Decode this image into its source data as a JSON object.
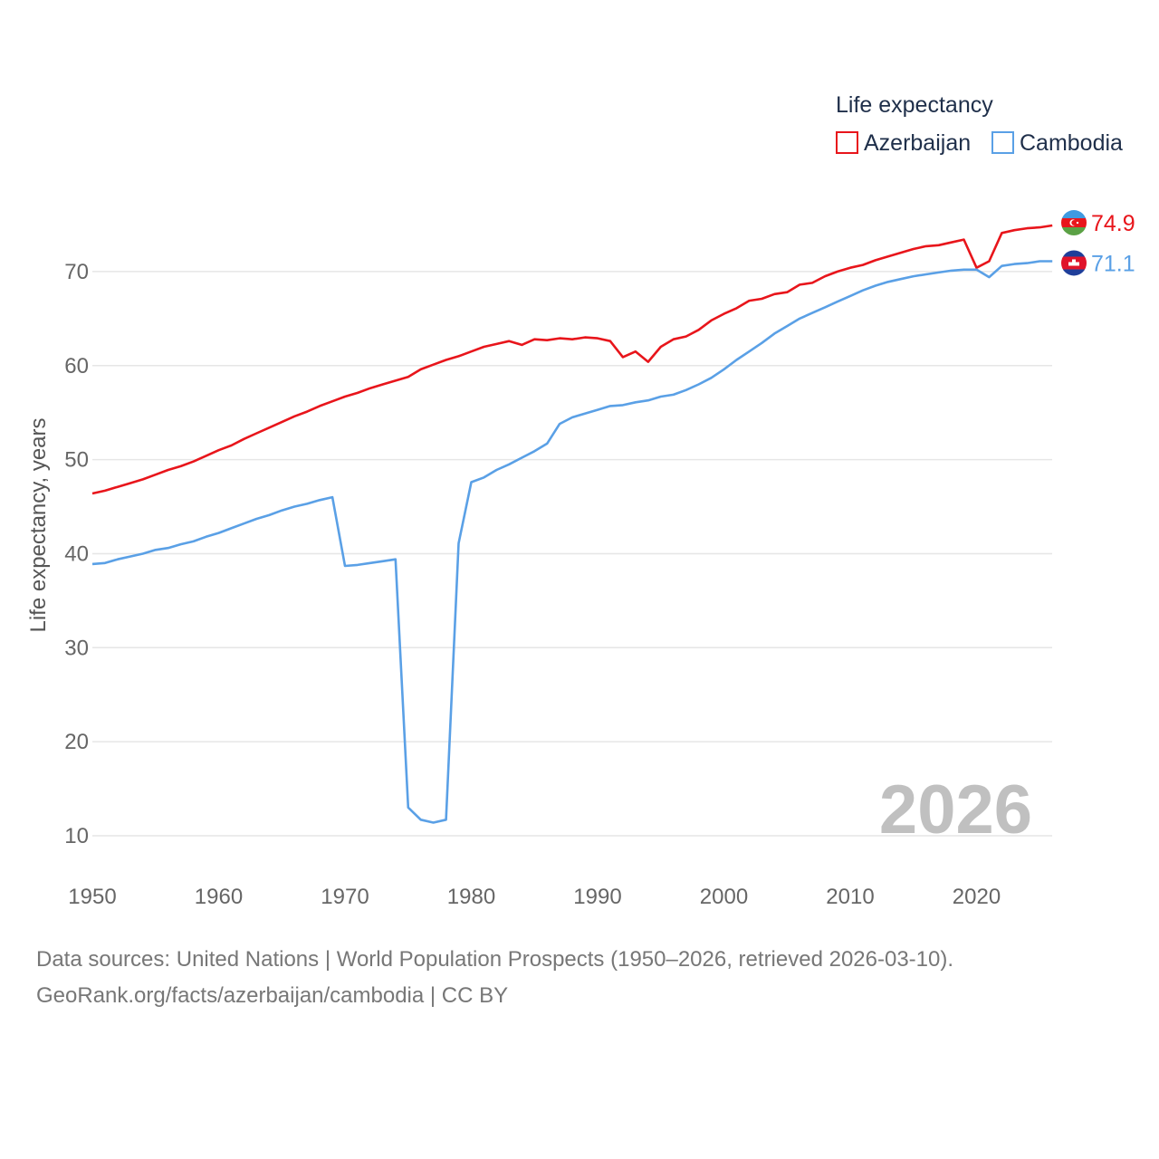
{
  "chart_data": {
    "type": "line",
    "title": "",
    "ylabel": "Life expectancy, years",
    "xlabel": "",
    "xlim": [
      1950,
      2026
    ],
    "ylim": [
      5,
      80
    ],
    "y_ticks": [
      10,
      20,
      30,
      40,
      50,
      60,
      70
    ],
    "x_ticks": [
      1950,
      1960,
      1970,
      1980,
      1990,
      2000,
      2010,
      2020
    ],
    "grid": "horizontal",
    "legend_title": "Life expectancy",
    "legend_position": "top-right",
    "current_year_label": "2026",
    "x": [
      1950,
      1951,
      1952,
      1953,
      1954,
      1955,
      1956,
      1957,
      1958,
      1959,
      1960,
      1961,
      1962,
      1963,
      1964,
      1965,
      1966,
      1967,
      1968,
      1969,
      1970,
      1971,
      1972,
      1973,
      1974,
      1975,
      1976,
      1977,
      1978,
      1979,
      1980,
      1981,
      1982,
      1983,
      1984,
      1985,
      1986,
      1987,
      1988,
      1989,
      1990,
      1991,
      1992,
      1993,
      1994,
      1995,
      1996,
      1997,
      1998,
      1999,
      2000,
      2001,
      2002,
      2003,
      2004,
      2005,
      2006,
      2007,
      2008,
      2009,
      2010,
      2011,
      2012,
      2013,
      2014,
      2015,
      2016,
      2017,
      2018,
      2019,
      2020,
      2021,
      2022,
      2023,
      2024,
      2025,
      2026
    ],
    "series": [
      {
        "name": "Azerbaijan",
        "color": "#e8151b",
        "end_label": "74.9",
        "flag": "azerbaijan-flag-icon",
        "values": [
          46.4,
          46.7,
          47.1,
          47.5,
          47.9,
          48.4,
          48.9,
          49.3,
          49.8,
          50.4,
          51.0,
          51.5,
          52.2,
          52.8,
          53.4,
          54.0,
          54.6,
          55.1,
          55.7,
          56.2,
          56.7,
          57.1,
          57.6,
          58.0,
          58.4,
          58.8,
          59.6,
          60.1,
          60.6,
          61.0,
          61.5,
          62.0,
          62.3,
          62.6,
          62.2,
          62.8,
          62.7,
          62.9,
          62.8,
          63.0,
          62.9,
          62.6,
          60.9,
          61.5,
          60.4,
          62.0,
          62.8,
          63.1,
          63.8,
          64.8,
          65.5,
          66.1,
          66.9,
          67.1,
          67.6,
          67.8,
          68.6,
          68.8,
          69.5,
          70.0,
          70.4,
          70.7,
          71.2,
          71.6,
          72.0,
          72.4,
          72.7,
          72.8,
          73.1,
          73.4,
          70.4,
          71.1,
          74.1,
          74.4,
          74.6,
          74.7,
          74.9
        ]
      },
      {
        "name": "Cambodia",
        "color": "#5aa0e6",
        "end_label": "71.1",
        "flag": "cambodia-flag-icon",
        "values": [
          38.9,
          39.0,
          39.4,
          39.7,
          40.0,
          40.4,
          40.6,
          41.0,
          41.3,
          41.8,
          42.2,
          42.7,
          43.2,
          43.7,
          44.1,
          44.6,
          45.0,
          45.3,
          45.7,
          46.0,
          38.7,
          38.8,
          39.0,
          39.2,
          39.4,
          13.0,
          11.7,
          11.4,
          11.7,
          41.1,
          47.6,
          48.1,
          48.9,
          49.5,
          50.2,
          50.9,
          51.7,
          53.8,
          54.5,
          54.9,
          55.3,
          55.7,
          55.8,
          56.1,
          56.3,
          56.7,
          56.9,
          57.4,
          58.0,
          58.7,
          59.6,
          60.6,
          61.5,
          62.4,
          63.4,
          64.2,
          65.0,
          65.6,
          66.2,
          66.8,
          67.4,
          68.0,
          68.5,
          68.9,
          69.2,
          69.5,
          69.7,
          69.9,
          70.1,
          70.2,
          70.2,
          69.4,
          70.6,
          70.8,
          70.9,
          71.1,
          71.1
        ]
      }
    ]
  },
  "sources": {
    "line1": "Data sources: United Nations | World Population Prospects (1950–2026, retrieved 2026-03-10).",
    "line2": "GeoRank.org/facts/azerbaijan/cambodia | CC BY"
  }
}
